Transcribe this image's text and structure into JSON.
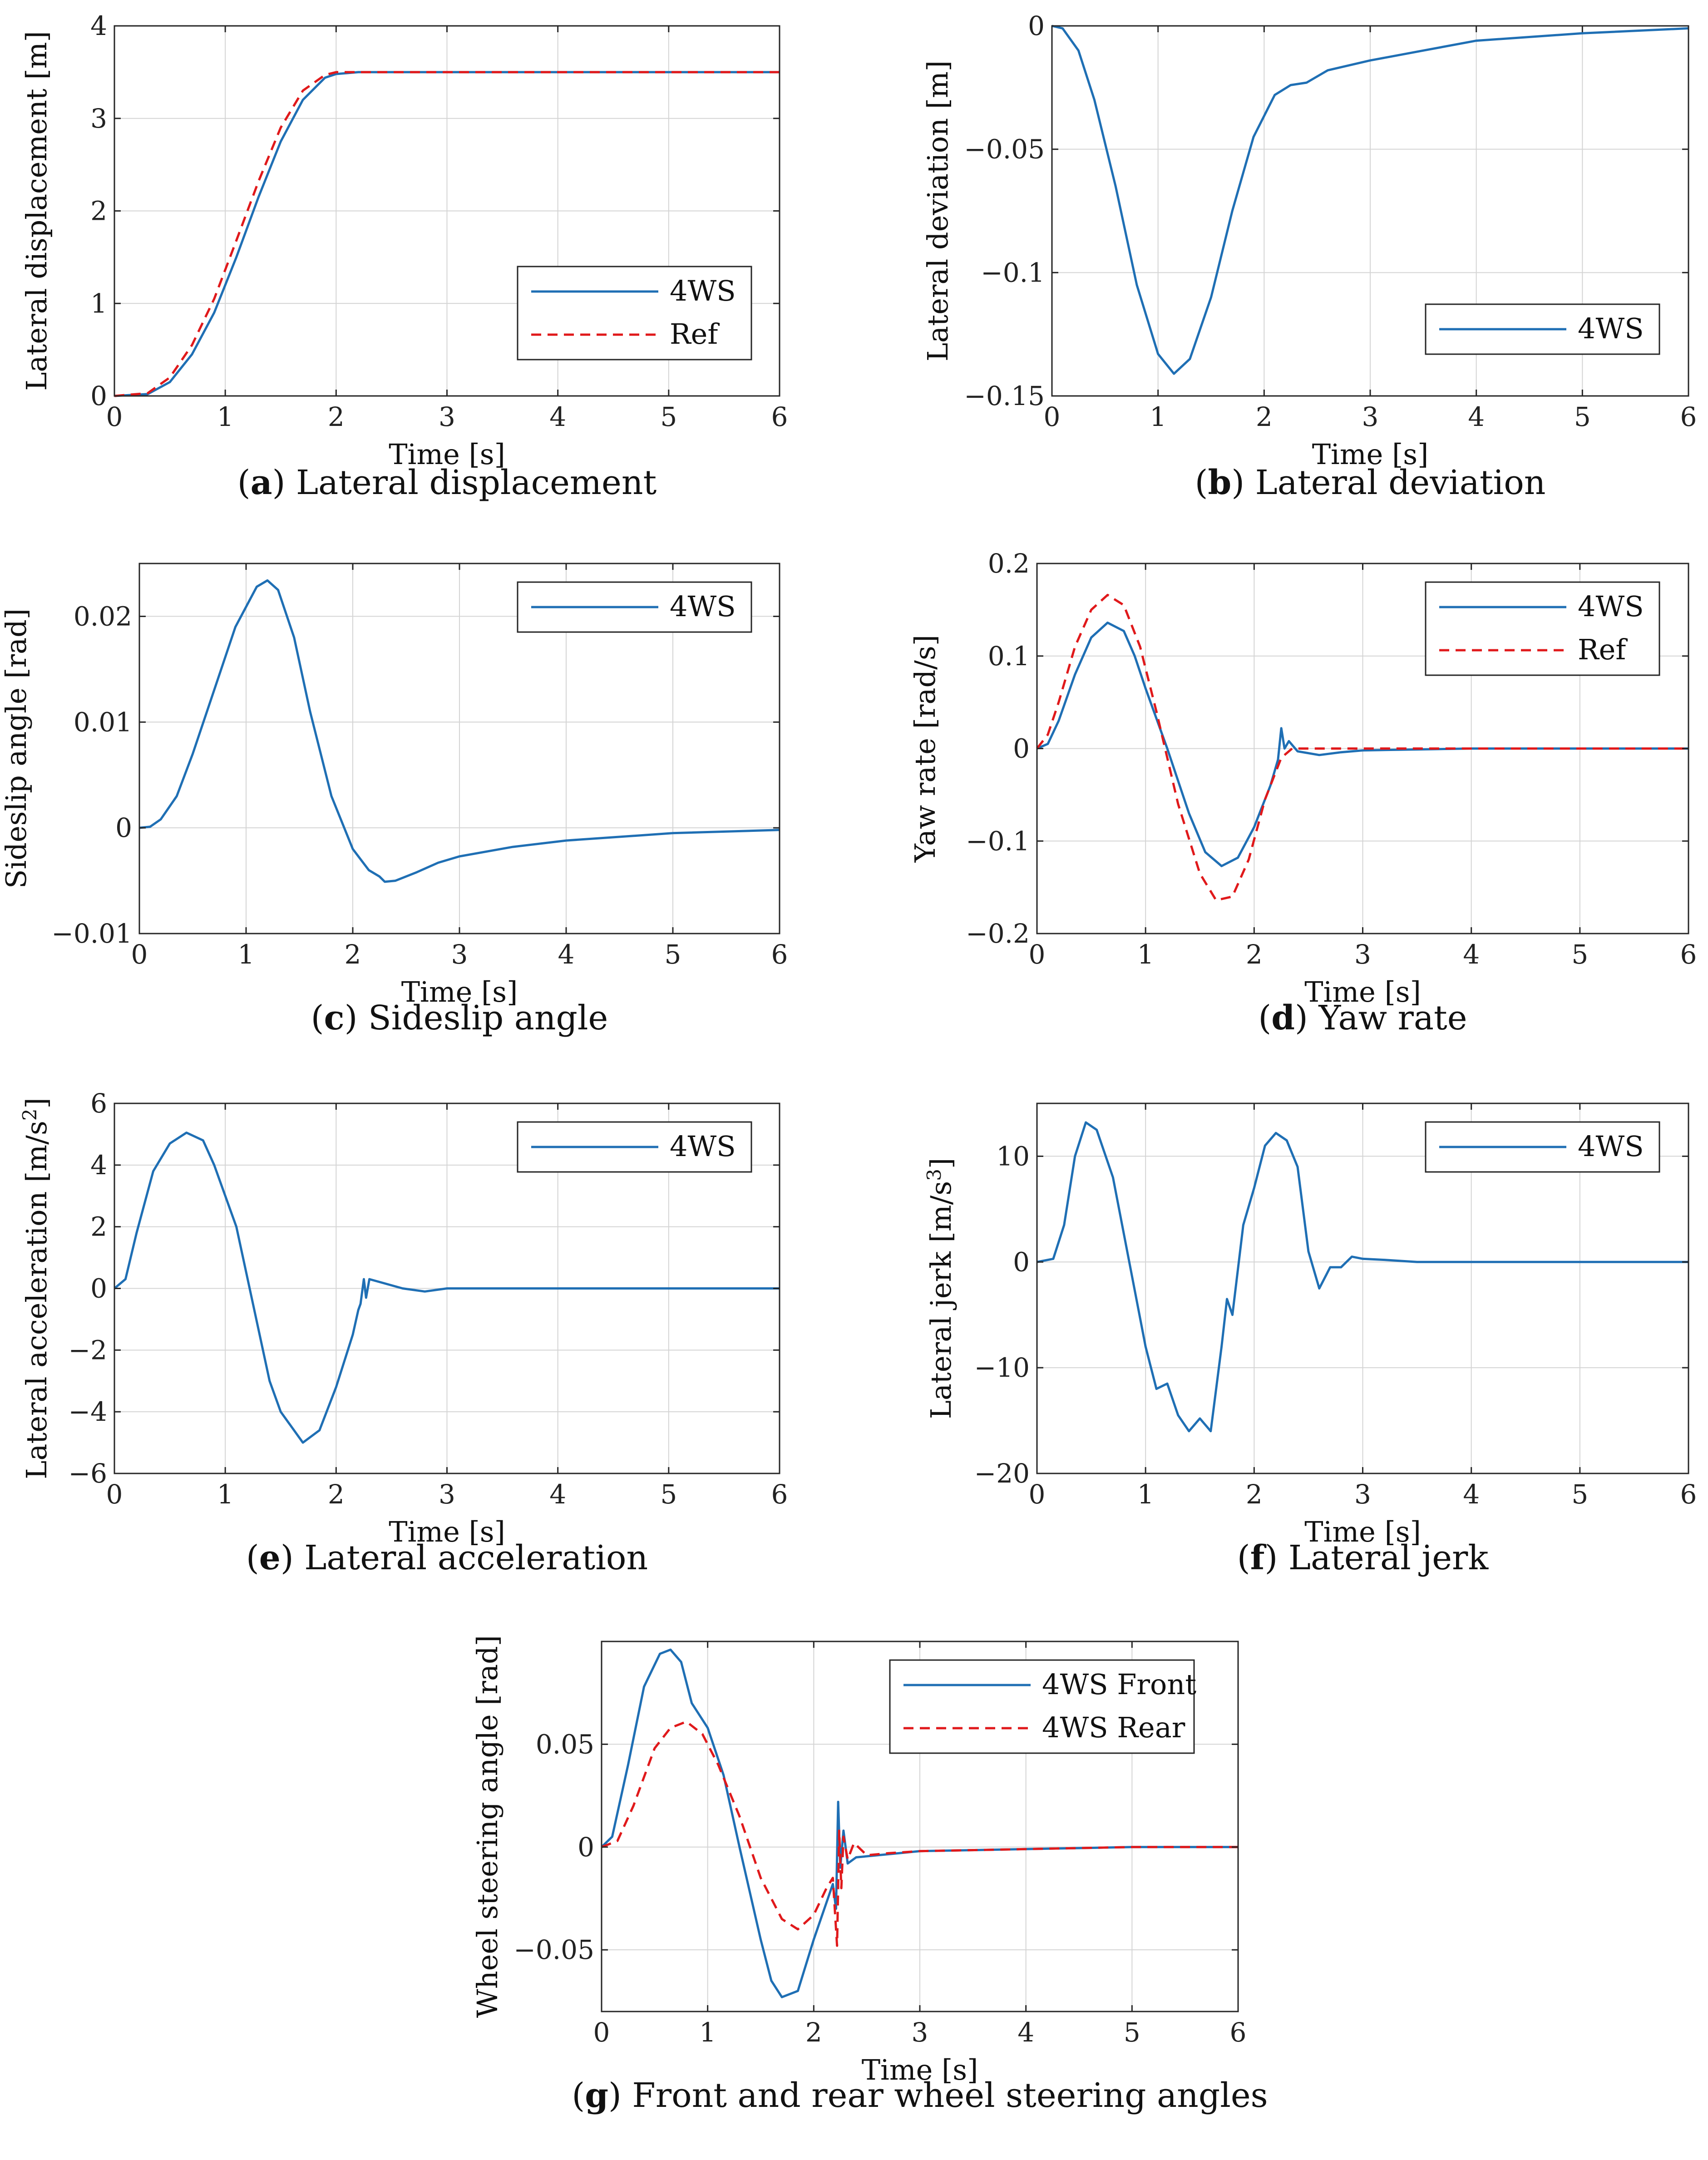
{
  "figure": {
    "colors": {
      "series_4ws": "#1f6fb4",
      "series_ref": "#e0191b",
      "grid": "#d4d4d4",
      "axis": "#262626"
    }
  },
  "chart_data": [
    {
      "id": "a",
      "type": "line",
      "caption_letter": "a",
      "caption": "Lateral displacement",
      "xlabel": "Time [s]",
      "ylabel": "Lateral displacement [m]",
      "xlim": [
        0,
        6
      ],
      "ylim": [
        0,
        4
      ],
      "xticks": [
        0,
        1,
        2,
        3,
        4,
        5,
        6
      ],
      "xtick_labels": [
        "0",
        "1",
        "2",
        "3",
        "4",
        "5",
        "6"
      ],
      "yticks": [
        0,
        1,
        2,
        3,
        4
      ],
      "ytick_labels": [
        "0",
        "1",
        "2",
        "3",
        "4"
      ],
      "legend": "lower-right",
      "grid": true,
      "series": [
        {
          "name": "4WS",
          "style": "solid",
          "color": "#1f6fb4",
          "x": [
            0,
            0.3,
            0.5,
            0.7,
            0.9,
            1.1,
            1.3,
            1.5,
            1.7,
            1.9,
            2.0,
            2.2,
            2.5,
            3,
            4,
            5,
            6
          ],
          "y": [
            0,
            0.02,
            0.15,
            0.45,
            0.9,
            1.5,
            2.15,
            2.75,
            3.2,
            3.44,
            3.48,
            3.5,
            3.5,
            3.5,
            3.5,
            3.5,
            3.5
          ]
        },
        {
          "name": "Ref",
          "style": "dashed",
          "color": "#e0191b",
          "x": [
            0,
            0.3,
            0.5,
            0.7,
            0.9,
            1.1,
            1.3,
            1.5,
            1.7,
            1.9,
            2.0,
            2.2,
            2.5,
            3,
            4,
            5,
            6
          ],
          "y": [
            0,
            0.03,
            0.2,
            0.55,
            1.05,
            1.68,
            2.32,
            2.9,
            3.3,
            3.47,
            3.5,
            3.5,
            3.5,
            3.5,
            3.5,
            3.5,
            3.5
          ]
        }
      ]
    },
    {
      "id": "b",
      "type": "line",
      "caption_letter": "b",
      "caption": "Lateral deviation",
      "xlabel": "Time [s]",
      "ylabel": "Lateral deviation [m]",
      "xlim": [
        0,
        6
      ],
      "ylim": [
        -0.15,
        0
      ],
      "xticks": [
        0,
        1,
        2,
        3,
        4,
        5,
        6
      ],
      "xtick_labels": [
        "0",
        "1",
        "2",
        "3",
        "4",
        "5",
        "6"
      ],
      "yticks": [
        -0.15,
        -0.1,
        -0.05,
        0
      ],
      "ytick_labels": [
        "−0.15",
        "−0.1",
        "−0.05",
        "0"
      ],
      "legend": "lower-right",
      "grid": true,
      "series": [
        {
          "name": "4WS",
          "style": "solid",
          "color": "#1f6fb4",
          "x": [
            0,
            0.1,
            0.25,
            0.4,
            0.6,
            0.8,
            1.0,
            1.15,
            1.3,
            1.5,
            1.7,
            1.9,
            2.1,
            2.25,
            2.4,
            2.6,
            3.0,
            3.5,
            4,
            5,
            6
          ],
          "y": [
            0,
            -0.001,
            -0.01,
            -0.03,
            -0.065,
            -0.105,
            -0.133,
            -0.141,
            -0.135,
            -0.11,
            -0.075,
            -0.045,
            -0.028,
            -0.024,
            -0.023,
            -0.018,
            -0.014,
            -0.01,
            -0.006,
            -0.003,
            -0.001
          ]
        }
      ]
    },
    {
      "id": "c",
      "type": "line",
      "caption_letter": "c",
      "caption": "Sideslip angle",
      "xlabel": "Time [s]",
      "ylabel": "Sideslip angle [rad]",
      "xlim": [
        0,
        6
      ],
      "ylim": [
        -0.01,
        0.025
      ],
      "xticks": [
        0,
        1,
        2,
        3,
        4,
        5,
        6
      ],
      "xtick_labels": [
        "0",
        "1",
        "2",
        "3",
        "4",
        "5",
        "6"
      ],
      "yticks": [
        -0.01,
        0,
        0.01,
        0.02
      ],
      "ytick_labels": [
        "−0.01",
        "0",
        "0.01",
        "0.02"
      ],
      "legend": "top-right",
      "grid": true,
      "series": [
        {
          "name": "4WS",
          "style": "solid",
          "color": "#1f6fb4",
          "x": [
            0,
            0.1,
            0.2,
            0.35,
            0.5,
            0.7,
            0.9,
            1.1,
            1.2,
            1.3,
            1.45,
            1.6,
            1.8,
            2.0,
            2.15,
            2.25,
            2.3,
            2.4,
            2.6,
            2.8,
            3.0,
            3.5,
            4,
            5,
            6
          ],
          "y": [
            0,
            0.0001,
            0.0008,
            0.003,
            0.007,
            0.013,
            0.019,
            0.0228,
            0.0234,
            0.0225,
            0.018,
            0.011,
            0.003,
            -0.002,
            -0.004,
            -0.0046,
            -0.0051,
            -0.005,
            -0.0042,
            -0.0033,
            -0.0027,
            -0.0018,
            -0.0012,
            -0.0005,
            -0.0002
          ]
        }
      ]
    },
    {
      "id": "d",
      "type": "line",
      "caption_letter": "d",
      "caption": "Yaw rate",
      "xlabel": "Time [s]",
      "ylabel": "Yaw rate [rad/s]",
      "xlim": [
        0,
        6
      ],
      "ylim": [
        -0.2,
        0.2
      ],
      "xticks": [
        0,
        1,
        2,
        3,
        4,
        5,
        6
      ],
      "xtick_labels": [
        "0",
        "1",
        "2",
        "3",
        "4",
        "5",
        "6"
      ],
      "yticks": [
        -0.2,
        -0.1,
        0,
        0.1,
        0.2
      ],
      "ytick_labels": [
        "−0.2",
        "−0.1",
        "0",
        "0.1",
        "0.2"
      ],
      "legend": "top-right",
      "grid": true,
      "series": [
        {
          "name": "4WS",
          "style": "solid",
          "color": "#1f6fb4",
          "x": [
            0,
            0.1,
            0.2,
            0.35,
            0.5,
            0.65,
            0.8,
            0.9,
            1.0,
            1.2,
            1.4,
            1.55,
            1.7,
            1.85,
            2.0,
            2.15,
            2.22,
            2.25,
            2.28,
            2.32,
            2.4,
            2.6,
            2.8,
            3.0,
            4,
            5,
            6
          ],
          "y": [
            0,
            0.005,
            0.03,
            0.08,
            0.12,
            0.136,
            0.127,
            0.1,
            0.065,
            0.0,
            -0.07,
            -0.112,
            -0.127,
            -0.118,
            -0.085,
            -0.04,
            -0.012,
            0.022,
            0.0,
            0.008,
            -0.003,
            -0.007,
            -0.004,
            -0.002,
            0,
            0,
            0
          ]
        },
        {
          "name": "Ref",
          "style": "dashed",
          "color": "#e0191b",
          "x": [
            0,
            0.1,
            0.2,
            0.35,
            0.5,
            0.65,
            0.8,
            0.95,
            1.1,
            1.3,
            1.5,
            1.65,
            1.8,
            1.95,
            2.1,
            2.25,
            2.35,
            3,
            4,
            5,
            6
          ],
          "y": [
            0,
            0.015,
            0.05,
            0.11,
            0.15,
            0.166,
            0.155,
            0.11,
            0.04,
            -0.06,
            -0.135,
            -0.164,
            -0.16,
            -0.12,
            -0.055,
            -0.01,
            0,
            0,
            0,
            0,
            0
          ]
        }
      ]
    },
    {
      "id": "e",
      "type": "line",
      "caption_letter": "e",
      "caption": "Lateral acceleration",
      "xlabel": "Time [s]",
      "ylabel": "Lateral acceleration [m/s",
      "ylabel_sup": "2",
      "ylabel_tail": "]",
      "xlim": [
        0,
        6
      ],
      "ylim": [
        -6,
        6
      ],
      "xticks": [
        0,
        1,
        2,
        3,
        4,
        5,
        6
      ],
      "xtick_labels": [
        "0",
        "1",
        "2",
        "3",
        "4",
        "5",
        "6"
      ],
      "yticks": [
        -6,
        -4,
        -2,
        0,
        2,
        4,
        6
      ],
      "ytick_labels": [
        "−6",
        "−4",
        "−2",
        "0",
        "2",
        "4",
        "6"
      ],
      "legend": "top-right",
      "grid": true,
      "series": [
        {
          "name": "4WS",
          "style": "solid",
          "color": "#1f6fb4",
          "x": [
            0,
            0.1,
            0.2,
            0.35,
            0.5,
            0.65,
            0.8,
            0.9,
            1.0,
            1.1,
            1.25,
            1.4,
            1.5,
            1.6,
            1.7,
            1.85,
            2.0,
            2.15,
            2.2,
            2.22,
            2.25,
            2.27,
            2.3,
            2.4,
            2.6,
            2.8,
            3.0,
            4,
            5,
            6
          ],
          "y": [
            0,
            0.3,
            1.8,
            3.8,
            4.7,
            5.05,
            4.8,
            4.0,
            3.0,
            2.0,
            -0.5,
            -3.0,
            -4.0,
            -4.5,
            -5.0,
            -4.6,
            -3.2,
            -1.5,
            -0.7,
            -0.5,
            0.3,
            -0.3,
            0.3,
            0.2,
            0.0,
            -0.1,
            0.0,
            0,
            0,
            0
          ]
        }
      ]
    },
    {
      "id": "f",
      "type": "line",
      "caption_letter": "f",
      "caption": "Lateral jerk",
      "xlabel": "Time [s]",
      "ylabel": "Lateral jerk [m/s",
      "ylabel_sup": "3",
      "ylabel_tail": "]",
      "xlim": [
        0,
        6
      ],
      "ylim": [
        -20,
        15
      ],
      "xticks": [
        0,
        1,
        2,
        3,
        4,
        5,
        6
      ],
      "xtick_labels": [
        "0",
        "1",
        "2",
        "3",
        "4",
        "5",
        "6"
      ],
      "yticks": [
        -20,
        -10,
        0,
        10
      ],
      "ytick_labels": [
        "−20",
        "−10",
        "0",
        "10"
      ],
      "legend": "top-right",
      "grid": true,
      "series": [
        {
          "name": "4WS",
          "style": "solid",
          "color": "#1f6fb4",
          "x": [
            0,
            0.15,
            0.25,
            0.35,
            0.45,
            0.55,
            0.7,
            0.85,
            1.0,
            1.1,
            1.2,
            1.3,
            1.4,
            1.5,
            1.6,
            1.7,
            1.75,
            1.8,
            1.9,
            2.0,
            2.1,
            2.2,
            2.3,
            2.4,
            2.5,
            2.6,
            2.7,
            2.8,
            2.9,
            3.0,
            3.2,
            3.5,
            4,
            5,
            6
          ],
          "y": [
            0,
            0.3,
            3.5,
            10.0,
            13.2,
            12.5,
            8.0,
            0.0,
            -8.0,
            -12.0,
            -11.5,
            -14.5,
            -16.0,
            -14.8,
            -16.0,
            -8.0,
            -3.5,
            -5.0,
            3.5,
            7.0,
            11.0,
            12.2,
            11.5,
            9.0,
            1.0,
            -2.5,
            -0.5,
            -0.5,
            0.5,
            0.3,
            0.2,
            0,
            0,
            0,
            0
          ]
        }
      ]
    },
    {
      "id": "g",
      "type": "line",
      "caption_letter": "g",
      "caption": "Front and rear wheel steering angles",
      "xlabel": "Time [s]",
      "ylabel": "Wheel steering angle [rad]",
      "xlim": [
        0,
        6
      ],
      "ylim": [
        -0.08,
        0.1
      ],
      "xticks": [
        0,
        1,
        2,
        3,
        4,
        5,
        6
      ],
      "xtick_labels": [
        "0",
        "1",
        "2",
        "3",
        "4",
        "5",
        "6"
      ],
      "yticks": [
        -0.05,
        0,
        0.05
      ],
      "ytick_labels": [
        "−0.05",
        "0",
        "0.05"
      ],
      "legend": "top-right",
      "grid": true,
      "series": [
        {
          "name": "4WS Front",
          "style": "solid",
          "color": "#1f6fb4",
          "x": [
            0,
            0.1,
            0.25,
            0.4,
            0.55,
            0.65,
            0.75,
            0.85,
            1.0,
            1.15,
            1.3,
            1.5,
            1.6,
            1.7,
            1.85,
            2.0,
            2.1,
            2.18,
            2.21,
            2.23,
            2.25,
            2.28,
            2.32,
            2.4,
            2.6,
            2.8,
            3.0,
            4,
            5,
            6
          ],
          "y": [
            0,
            0.005,
            0.04,
            0.078,
            0.094,
            0.096,
            0.09,
            0.07,
            0.058,
            0.035,
            0.0,
            -0.045,
            -0.065,
            -0.073,
            -0.07,
            -0.045,
            -0.03,
            -0.018,
            -0.03,
            0.022,
            -0.01,
            0.008,
            -0.008,
            -0.005,
            -0.004,
            -0.003,
            -0.002,
            -0.001,
            0,
            0
          ]
        },
        {
          "name": "4WS Rear",
          "style": "dashed",
          "color": "#e0191b",
          "x": [
            0,
            0.15,
            0.3,
            0.5,
            0.65,
            0.8,
            0.95,
            1.1,
            1.3,
            1.5,
            1.7,
            1.85,
            2.0,
            2.12,
            2.18,
            2.22,
            2.24,
            2.26,
            2.28,
            2.32,
            2.38,
            2.5,
            2.7,
            3.0,
            4,
            5,
            6
          ],
          "y": [
            0,
            0.003,
            0.02,
            0.048,
            0.058,
            0.061,
            0.055,
            0.04,
            0.015,
            -0.015,
            -0.035,
            -0.04,
            -0.033,
            -0.02,
            -0.015,
            -0.048,
            0.008,
            -0.02,
            0.005,
            -0.006,
            0.002,
            -0.004,
            -0.003,
            -0.002,
            -0.001,
            0,
            0
          ]
        }
      ]
    }
  ]
}
